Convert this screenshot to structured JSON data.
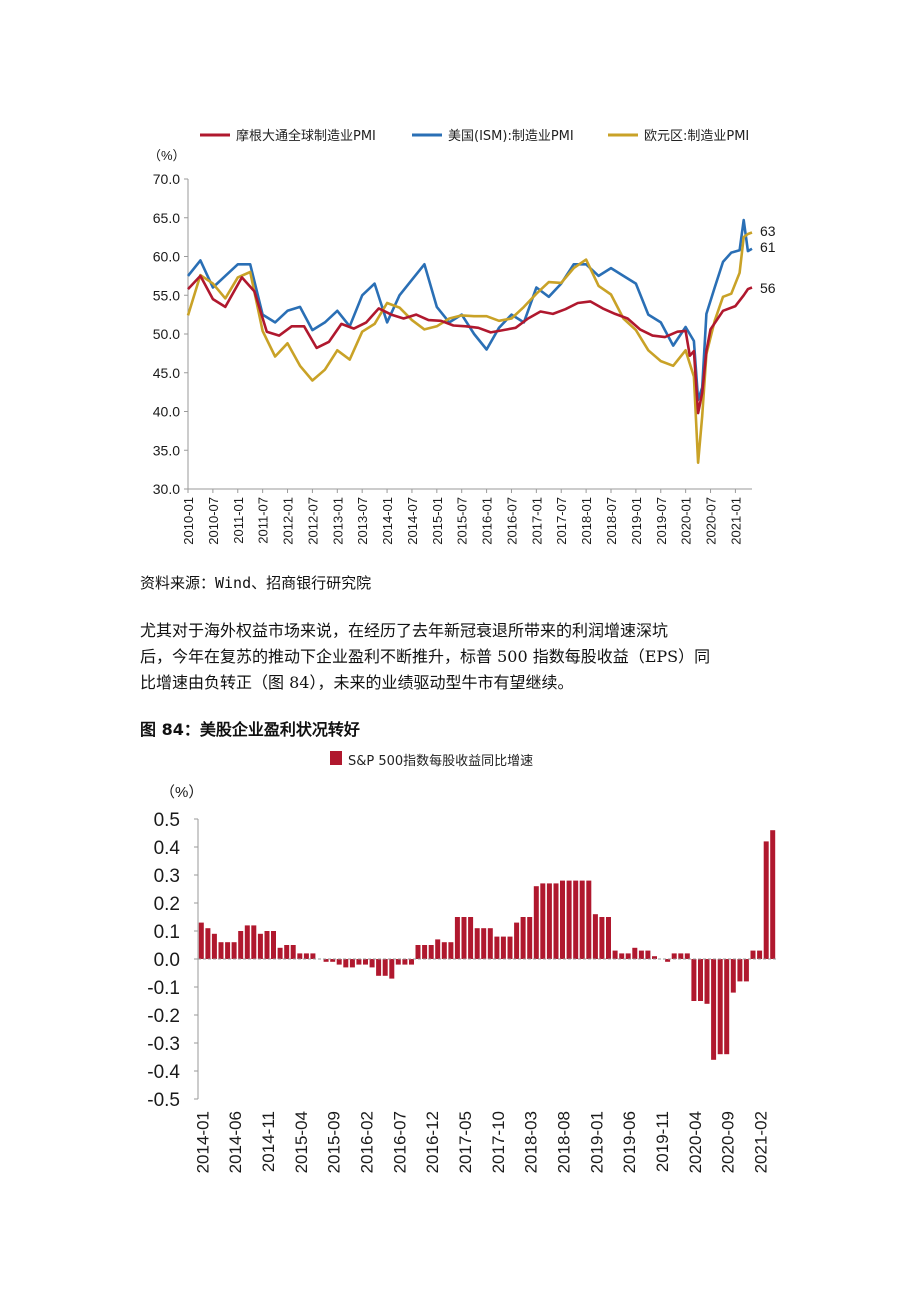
{
  "pmi_chart": {
    "chart_data": {
      "type": "line",
      "ylabel": "（%）",
      "ylim": [
        30,
        70
      ],
      "yticks": [
        "70.0",
        "65.0",
        "60.0",
        "55.0",
        "50.0",
        "45.0",
        "40.0",
        "35.0",
        "30.0"
      ],
      "xticks": [
        "2010-01",
        "2010-07",
        "2011-01",
        "2011-07",
        "2012-01",
        "2012-07",
        "2013-01",
        "2013-07",
        "2014-01",
        "2014-07",
        "2015-01",
        "2015-07",
        "2016-01",
        "2016-07",
        "2017-01",
        "2017-07",
        "2018-01",
        "2018-07",
        "2019-01",
        "2019-07",
        "2020-01",
        "2020-07",
        "2021-01"
      ],
      "legend_position": "top",
      "series": [
        {
          "name": "摩根大通全球制造业PMI",
          "color": "#b0182e",
          "end_label": "56",
          "points": [
            [
              "2010-01",
              55.8
            ],
            [
              "2010-04",
              57.5
            ],
            [
              "2010-07",
              54.5
            ],
            [
              "2010-10",
              53.5
            ],
            [
              "2011-02",
              57.3
            ],
            [
              "2011-05",
              55.5
            ],
            [
              "2011-08",
              50.3
            ],
            [
              "2011-11",
              49.8
            ],
            [
              "2012-02",
              51.0
            ],
            [
              "2012-05",
              51.0
            ],
            [
              "2012-08",
              48.2
            ],
            [
              "2012-11",
              49.0
            ],
            [
              "2013-02",
              51.3
            ],
            [
              "2013-05",
              50.7
            ],
            [
              "2013-08",
              51.5
            ],
            [
              "2013-11",
              53.3
            ],
            [
              "2014-02",
              52.5
            ],
            [
              "2014-05",
              52.0
            ],
            [
              "2014-08",
              52.5
            ],
            [
              "2014-11",
              51.8
            ],
            [
              "2015-02",
              51.7
            ],
            [
              "2015-05",
              51.1
            ],
            [
              "2015-08",
              51.0
            ],
            [
              "2015-11",
              50.8
            ],
            [
              "2016-02",
              50.2
            ],
            [
              "2016-05",
              50.5
            ],
            [
              "2016-08",
              50.8
            ],
            [
              "2016-11",
              52.0
            ],
            [
              "2017-02",
              52.9
            ],
            [
              "2017-05",
              52.6
            ],
            [
              "2017-08",
              53.2
            ],
            [
              "2017-11",
              54.0
            ],
            [
              "2018-02",
              54.2
            ],
            [
              "2018-05",
              53.3
            ],
            [
              "2018-08",
              52.6
            ],
            [
              "2018-11",
              52.0
            ],
            [
              "2019-02",
              50.6
            ],
            [
              "2019-05",
              49.8
            ],
            [
              "2019-08",
              49.6
            ],
            [
              "2019-11",
              50.3
            ],
            [
              "2020-01",
              50.4
            ],
            [
              "2020-02",
              47.2
            ],
            [
              "2020-03",
              47.8
            ],
            [
              "2020-04",
              39.8
            ],
            [
              "2020-05",
              42.4
            ],
            [
              "2020-06",
              47.8
            ],
            [
              "2020-07",
              50.6
            ],
            [
              "2020-10",
              53.0
            ],
            [
              "2021-01",
              53.6
            ],
            [
              "2021-03",
              55.0
            ],
            [
              "2021-04",
              55.8
            ],
            [
              "2021-05",
              56.0
            ]
          ]
        },
        {
          "name": "美国(ISM):制造业PMI",
          "color": "#2a6fb5",
          "end_label": "61",
          "points": [
            [
              "2010-01",
              57.5
            ],
            [
              "2010-04",
              59.5
            ],
            [
              "2010-07",
              56.0
            ],
            [
              "2010-10",
              57.5
            ],
            [
              "2011-01",
              59.0
            ],
            [
              "2011-04",
              59.0
            ],
            [
              "2011-07",
              52.5
            ],
            [
              "2011-10",
              51.5
            ],
            [
              "2012-01",
              53.0
            ],
            [
              "2012-04",
              53.5
            ],
            [
              "2012-07",
              50.5
            ],
            [
              "2012-10",
              51.5
            ],
            [
              "2013-01",
              53.0
            ],
            [
              "2013-04",
              51.0
            ],
            [
              "2013-07",
              55.0
            ],
            [
              "2013-10",
              56.5
            ],
            [
              "2014-01",
              51.5
            ],
            [
              "2014-04",
              55.0
            ],
            [
              "2014-07",
              57.0
            ],
            [
              "2014-10",
              59.0
            ],
            [
              "2015-01",
              53.5
            ],
            [
              "2015-04",
              51.5
            ],
            [
              "2015-07",
              52.5
            ],
            [
              "2015-10",
              50.0
            ],
            [
              "2016-01",
              48.0
            ],
            [
              "2016-04",
              50.8
            ],
            [
              "2016-07",
              52.5
            ],
            [
              "2016-10",
              51.5
            ],
            [
              "2017-01",
              56.0
            ],
            [
              "2017-04",
              54.8
            ],
            [
              "2017-07",
              56.5
            ],
            [
              "2017-10",
              59.0
            ],
            [
              "2018-01",
              59.0
            ],
            [
              "2018-04",
              57.5
            ],
            [
              "2018-07",
              58.5
            ],
            [
              "2018-10",
              57.5
            ],
            [
              "2019-01",
              56.5
            ],
            [
              "2019-04",
              52.5
            ],
            [
              "2019-07",
              51.5
            ],
            [
              "2019-10",
              48.5
            ],
            [
              "2020-01",
              50.9
            ],
            [
              "2020-03",
              49.1
            ],
            [
              "2020-04",
              41.5
            ],
            [
              "2020-05",
              43.1
            ],
            [
              "2020-06",
              52.6
            ],
            [
              "2020-08",
              56.0
            ],
            [
              "2020-10",
              59.3
            ],
            [
              "2020-12",
              60.5
            ],
            [
              "2021-02",
              60.8
            ],
            [
              "2021-03",
              64.7
            ],
            [
              "2021-04",
              60.7
            ],
            [
              "2021-05",
              61.0
            ]
          ]
        },
        {
          "name": "欧元区:制造业PMI",
          "color": "#c9a227",
          "end_label": "63",
          "points": [
            [
              "2010-01",
              52.4
            ],
            [
              "2010-04",
              57.6
            ],
            [
              "2010-07",
              56.5
            ],
            [
              "2010-10",
              54.6
            ],
            [
              "2011-01",
              57.3
            ],
            [
              "2011-04",
              58.0
            ],
            [
              "2011-07",
              50.4
            ],
            [
              "2011-10",
              47.1
            ],
            [
              "2012-01",
              48.8
            ],
            [
              "2012-04",
              45.9
            ],
            [
              "2012-07",
              44.0
            ],
            [
              "2012-10",
              45.4
            ],
            [
              "2013-01",
              47.9
            ],
            [
              "2013-04",
              46.7
            ],
            [
              "2013-07",
              50.3
            ],
            [
              "2013-10",
              51.3
            ],
            [
              "2014-01",
              54.0
            ],
            [
              "2014-04",
              53.4
            ],
            [
              "2014-07",
              51.8
            ],
            [
              "2014-10",
              50.6
            ],
            [
              "2015-01",
              51.0
            ],
            [
              "2015-04",
              52.0
            ],
            [
              "2015-07",
              52.4
            ],
            [
              "2015-10",
              52.3
            ],
            [
              "2016-01",
              52.3
            ],
            [
              "2016-04",
              51.7
            ],
            [
              "2016-07",
              52.0
            ],
            [
              "2016-10",
              53.5
            ],
            [
              "2017-01",
              55.2
            ],
            [
              "2017-04",
              56.7
            ],
            [
              "2017-07",
              56.6
            ],
            [
              "2017-10",
              58.5
            ],
            [
              "2018-01",
              59.6
            ],
            [
              "2018-04",
              56.2
            ],
            [
              "2018-07",
              55.1
            ],
            [
              "2018-10",
              52.0
            ],
            [
              "2019-01",
              50.5
            ],
            [
              "2019-04",
              47.9
            ],
            [
              "2019-07",
              46.5
            ],
            [
              "2019-10",
              45.9
            ],
            [
              "2020-01",
              47.9
            ],
            [
              "2020-03",
              44.5
            ],
            [
              "2020-04",
              33.4
            ],
            [
              "2020-05",
              39.4
            ],
            [
              "2020-06",
              47.4
            ],
            [
              "2020-08",
              51.7
            ],
            [
              "2020-10",
              54.8
            ],
            [
              "2020-12",
              55.2
            ],
            [
              "2021-02",
              57.9
            ],
            [
              "2021-03",
              62.5
            ],
            [
              "2021-04",
              62.9
            ],
            [
              "2021-05",
              63.1
            ]
          ]
        }
      ]
    }
  },
  "source_text": "资料来源：Wind、招商银行研究院",
  "paragraph_lines": [
    "尤其对于海外权益市场来说，在经历了去年新冠衰退所带来的利润增速深坑",
    "后，今年在复苏的推动下企业盈利不断推升，标普 500 指数每股收益（EPS）同",
    "比增速由负转正（图 84），未来的业绩驱动型牛市有望继续。"
  ],
  "figure_title": "图 84：美股企业盈利状况转好",
  "eps_chart": {
    "chart_data": {
      "type": "bar",
      "ylabel": "（%）",
      "ylim": [
        -0.5,
        0.5
      ],
      "yticks": [
        "0.5",
        "0.4",
        "0.3",
        "0.2",
        "0.1",
        "0.0",
        "-0.1",
        "-0.2",
        "-0.3",
        "-0.4",
        "-0.5"
      ],
      "xticks": [
        "2014-01",
        "2014-06",
        "2014-11",
        "2015-04",
        "2015-09",
        "2016-02",
        "2016-07",
        "2016-12",
        "2017-05",
        "2017-10",
        "2018-03",
        "2018-08",
        "2019-01",
        "2019-06",
        "2019-11",
        "2020-04",
        "2020-09",
        "2021-02"
      ],
      "legend_position": "top",
      "series": [
        {
          "name": "S&P 500指数每股收益同比增速",
          "color": "#b0182e",
          "start": "2014-01",
          "values": [
            0.13,
            0.11,
            0.09,
            0.06,
            0.06,
            0.06,
            0.1,
            0.12,
            0.12,
            0.09,
            0.1,
            0.1,
            0.04,
            0.05,
            0.05,
            0.02,
            0.02,
            0.02,
            0.0,
            -0.01,
            -0.01,
            -0.02,
            -0.03,
            -0.03,
            -0.02,
            -0.02,
            -0.03,
            -0.06,
            -0.06,
            -0.07,
            -0.02,
            -0.02,
            -0.02,
            0.05,
            0.05,
            0.05,
            0.07,
            0.06,
            0.06,
            0.15,
            0.15,
            0.15,
            0.11,
            0.11,
            0.11,
            0.08,
            0.08,
            0.08,
            0.13,
            0.15,
            0.15,
            0.26,
            0.27,
            0.27,
            0.27,
            0.28,
            0.28,
            0.28,
            0.28,
            0.28,
            0.16,
            0.15,
            0.15,
            0.03,
            0.02,
            0.02,
            0.04,
            0.03,
            0.03,
            0.01,
            0.0,
            -0.01,
            0.02,
            0.02,
            0.02,
            -0.15,
            -0.15,
            -0.16,
            -0.36,
            -0.34,
            -0.34,
            -0.12,
            -0.08,
            -0.08,
            0.03,
            0.03,
            0.42,
            0.46
          ]
        }
      ]
    }
  }
}
